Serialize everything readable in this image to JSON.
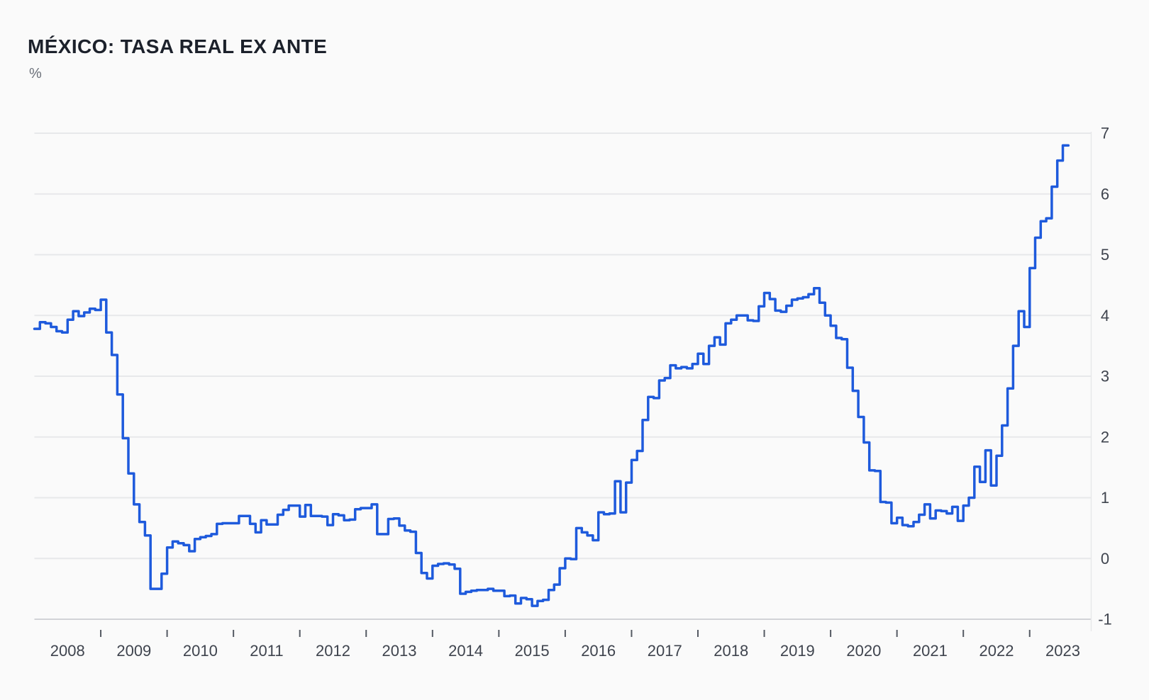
{
  "header": {
    "title": "MÉXICO: TASA REAL EX ANTE",
    "subtitle": "%"
  },
  "colors": {
    "background": "#fafafa",
    "line": "#1e5adc",
    "gridline": "#e7e8ea",
    "baseline": "#d2d3d7",
    "axis_text": "#3f444e",
    "tick": "#555a63",
    "title_text": "#1c212b",
    "subtitle_text": "#6b7079"
  },
  "chart_data": {
    "type": "line",
    "line_style": "step-after",
    "title": "MÉXICO: TASA REAL EX ANTE",
    "ylabel": "%",
    "grid": "horizontal",
    "legend_position": "none",
    "y_axis": {
      "side": "right",
      "range": [
        -1,
        7
      ],
      "ticks": [
        7,
        6,
        5,
        4,
        3,
        2,
        1,
        0,
        -1
      ]
    },
    "x_axis": {
      "start_year": 2008,
      "start_month": 1,
      "frequency": "monthly",
      "tick_labels": [
        "2008",
        "2009",
        "2010",
        "2011",
        "2012",
        "2013",
        "2014",
        "2015",
        "2016",
        "2017",
        "2018",
        "2019",
        "2020",
        "2021",
        "2022",
        "2023"
      ]
    },
    "values": [
      3.78,
      3.89,
      3.87,
      3.81,
      3.74,
      3.72,
      3.93,
      4.07,
      3.99,
      4.05,
      4.11,
      4.09,
      4.26,
      3.72,
      3.35,
      2.7,
      1.98,
      1.4,
      0.89,
      0.6,
      0.38,
      -0.5,
      -0.5,
      -0.25,
      0.18,
      0.28,
      0.25,
      0.22,
      0.12,
      0.32,
      0.35,
      0.37,
      0.4,
      0.57,
      0.58,
      0.58,
      0.58,
      0.7,
      0.7,
      0.57,
      0.43,
      0.63,
      0.56,
      0.56,
      0.72,
      0.8,
      0.87,
      0.87,
      0.69,
      0.88,
      0.7,
      0.7,
      0.69,
      0.55,
      0.73,
      0.71,
      0.63,
      0.64,
      0.81,
      0.83,
      0.83,
      0.89,
      0.4,
      0.4,
      0.65,
      0.66,
      0.54,
      0.46,
      0.44,
      0.09,
      -0.24,
      -0.33,
      -0.12,
      -0.09,
      -0.08,
      -0.1,
      -0.17,
      -0.58,
      -0.55,
      -0.53,
      -0.52,
      -0.52,
      -0.5,
      -0.53,
      -0.53,
      -0.62,
      -0.61,
      -0.74,
      -0.65,
      -0.67,
      -0.78,
      -0.7,
      -0.68,
      -0.52,
      -0.43,
      -0.16,
      0.0,
      -0.01,
      0.5,
      0.43,
      0.38,
      0.3,
      0.76,
      0.73,
      0.74,
      1.27,
      0.76,
      1.25,
      1.62,
      1.77,
      2.28,
      2.66,
      2.64,
      2.93,
      2.97,
      3.18,
      3.13,
      3.15,
      3.13,
      3.2,
      3.37,
      3.2,
      3.5,
      3.64,
      3.52,
      3.87,
      3.93,
      4.0,
      4.0,
      3.92,
      3.91,
      4.15,
      4.37,
      4.27,
      4.08,
      4.06,
      4.16,
      4.26,
      4.28,
      4.3,
      4.35,
      4.45,
      4.21,
      4.0,
      3.83,
      3.63,
      3.61,
      3.14,
      2.76,
      2.33,
      1.91,
      1.45,
      1.44,
      0.93,
      0.92,
      0.58,
      0.67,
      0.55,
      0.53,
      0.6,
      0.72,
      0.89,
      0.66,
      0.79,
      0.78,
      0.74,
      0.85,
      0.62,
      0.87,
      1.0,
      1.51,
      1.26,
      1.78,
      1.2,
      1.69,
      2.19,
      2.8,
      3.5,
      4.07,
      3.81,
      4.78,
      5.28,
      5.55,
      5.6,
      6.12,
      6.55,
      6.8
    ]
  }
}
